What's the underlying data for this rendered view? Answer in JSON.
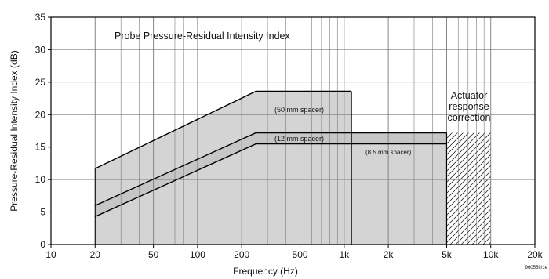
{
  "chart_data": {
    "type": "area",
    "title": "Probe Pressure-Residual Intensity Index",
    "xlabel": "Frequency (Hz)",
    "ylabel": "Pressure-Residual Intensity Index (dB)",
    "x_scale": "log",
    "xlim": [
      10,
      20000
    ],
    "ylim": [
      0,
      35
    ],
    "x_major_ticks": [
      10,
      20,
      50,
      100,
      200,
      500,
      1000,
      2000,
      5000,
      10000,
      20000
    ],
    "x_tick_labels": [
      "10",
      "20",
      "50",
      "100",
      "200",
      "500",
      "1k",
      "2k",
      "5k",
      "10k",
      "20k"
    ],
    "y_ticks": [
      0,
      5,
      10,
      15,
      20,
      25,
      30,
      35
    ],
    "grid": true,
    "series": [
      {
        "name": "(50 mm spacer)",
        "x": [
          20,
          250,
          1120
        ],
        "y": [
          11.7,
          23.6,
          23.6
        ]
      },
      {
        "name": "(12 mm spacer)",
        "x": [
          20,
          250,
          5000
        ],
        "y": [
          6.0,
          17.2,
          17.2
        ]
      },
      {
        "name": "(8.5 mm spacer)",
        "x": [
          20,
          250,
          5000
        ],
        "y": [
          4.3,
          15.5,
          15.5
        ]
      }
    ],
    "actuator_region": {
      "x_start": 5000,
      "x_end": 10000,
      "y_top": 17.2,
      "label": "Actuator response correction"
    },
    "annotations": [
      {
        "text": "(50 mm spacer)"
      },
      {
        "text": "(12 mm spacer)"
      },
      {
        "text": "(8.5 mm spacer)"
      },
      {
        "text": "Actuator response correction"
      }
    ],
    "figure_code": "960559/1e"
  },
  "colors": {
    "fill": "#d4d4d4",
    "grid": "#7a7a7a",
    "line": "#000000"
  }
}
